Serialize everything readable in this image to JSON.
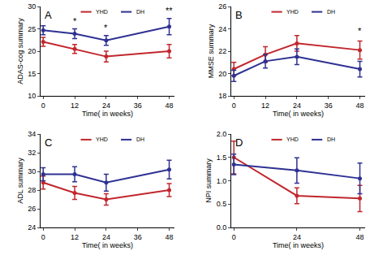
{
  "chart_data": [
    {
      "type": "line",
      "title": "A",
      "x_label": "Time( in weeks)",
      "y_label": "ADAS-cog summary",
      "x": [
        0,
        12,
        24,
        48
      ],
      "xlim": [
        -1,
        50
      ],
      "xticks": [
        0,
        12,
        24,
        36,
        48
      ],
      "ylim": [
        10,
        30
      ],
      "yticks": [
        10,
        15,
        20,
        25,
        30
      ],
      "marker": "circle",
      "series": [
        {
          "name": "YHD",
          "color": "#c1272d",
          "values": [
            22.1,
            20.5,
            18.8,
            20.0
          ],
          "error": [
            1.0,
            1.0,
            1.2,
            1.5
          ]
        },
        {
          "name": "DH",
          "color": "#2e3192",
          "values": [
            24.7,
            23.9,
            22.4,
            25.5
          ],
          "error": [
            1.0,
            1.1,
            1.1,
            1.8
          ]
        }
      ],
      "annotations": [
        {
          "x": 12,
          "y": 25.3,
          "text": "*"
        },
        {
          "x": 24,
          "y": 23.8,
          "text": "*"
        },
        {
          "x": 48,
          "y": 27.6,
          "text": "**"
        }
      ]
    },
    {
      "type": "line",
      "title": "B",
      "x_label": "Time( in weeks)",
      "y_label": "MMSE summary",
      "x": [
        0,
        12,
        24,
        48
      ],
      "xlim": [
        -1,
        50
      ],
      "xticks": [
        0,
        12,
        24,
        36,
        48
      ],
      "ylim": [
        18,
        26
      ],
      "yticks": [
        18,
        20,
        22,
        24,
        26
      ],
      "marker": "circle",
      "series": [
        {
          "name": "YHD",
          "color": "#c1272d",
          "values": [
            20.4,
            21.7,
            22.7,
            22.1
          ],
          "error": [
            0.6,
            0.7,
            0.7,
            0.8
          ]
        },
        {
          "name": "DH",
          "color": "#2e3192",
          "values": [
            19.8,
            21.1,
            21.5,
            20.4
          ],
          "error": [
            0.5,
            0.6,
            0.7,
            0.7
          ]
        }
      ],
      "annotations": [
        {
          "x": 48,
          "y": 23.2,
          "text": "*"
        }
      ]
    },
    {
      "type": "line",
      "title": "C",
      "x_label": "Time( in weeks)",
      "y_label": "ADL summary",
      "x": [
        0,
        12,
        24,
        48
      ],
      "xlim": [
        -1,
        50
      ],
      "xticks": [
        0,
        12,
        24,
        36,
        48
      ],
      "ylim": [
        24,
        34
      ],
      "yticks": [
        24,
        26,
        28,
        30,
        32,
        34
      ],
      "marker": "circle",
      "series": [
        {
          "name": "YHD",
          "color": "#c1272d",
          "values": [
            28.8,
            27.7,
            27.0,
            28.0
          ],
          "error": [
            0.7,
            0.7,
            0.6,
            0.7
          ]
        },
        {
          "name": "DH",
          "color": "#2e3192",
          "values": [
            29.7,
            29.7,
            28.8,
            30.2
          ],
          "error": [
            0.7,
            0.8,
            0.9,
            1.0
          ]
        }
      ]
    },
    {
      "type": "line",
      "title": "D",
      "x_label": "Time( in weeks)",
      "y_label": "NPI summary",
      "x": [
        0,
        24,
        48
      ],
      "xlim": [
        -1,
        50
      ],
      "xticks": [
        0,
        24,
        48
      ],
      "ylim": [
        0,
        2
      ],
      "yticks": [
        {
          "value": 0,
          "label": "0.0"
        },
        {
          "value": 0.5,
          "label": "0.5"
        },
        {
          "value": 1,
          "label": "1.0"
        },
        {
          "value": 1.5,
          "label": "1.5"
        },
        {
          "value": 2,
          "label": "2.0"
        }
      ],
      "marker": "circle",
      "series": [
        {
          "name": "YHD",
          "color": "#c1272d",
          "values": [
            1.5,
            0.68,
            0.62
          ],
          "error": [
            0.35,
            0.17,
            0.28
          ]
        },
        {
          "name": "DH",
          "color": "#2e3192",
          "values": [
            1.35,
            1.22,
            1.05
          ],
          "error": [
            0.22,
            0.27,
            0.33
          ]
        }
      ]
    }
  ]
}
